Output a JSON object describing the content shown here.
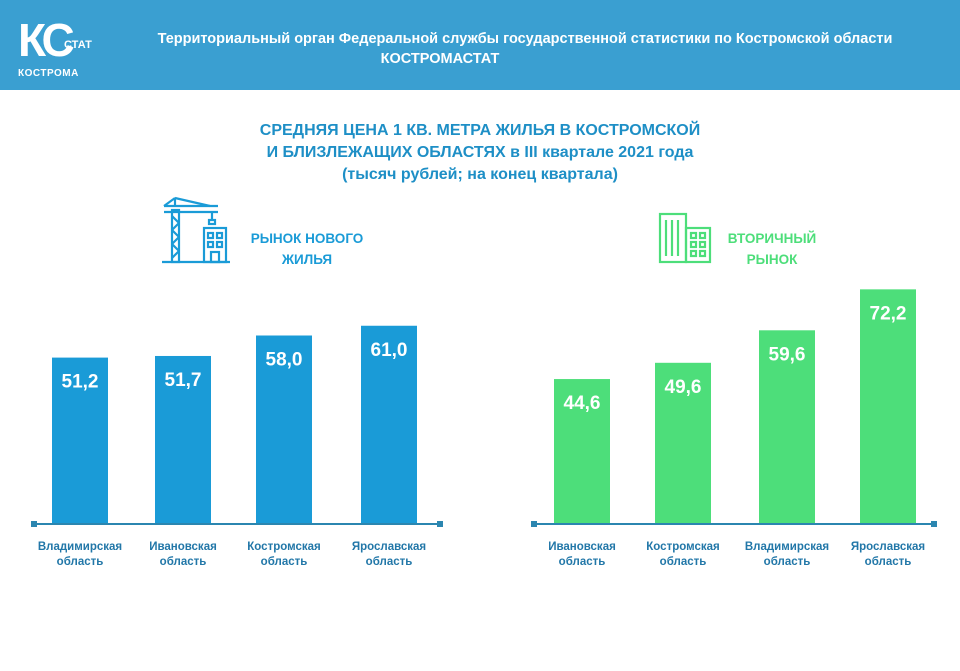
{
  "header": {
    "logo_letters": "КС",
    "logo_sub": "СТАТ",
    "logo_city": "КОСТРОМА",
    "org_line1": "Территориальный орган Федеральной службы государственной статистики по Костромской области",
    "org_line2": "КОСТРОМАСТАТ"
  },
  "colors": {
    "header_bg": "#3a9fd1",
    "new_market": "#1a9bd7",
    "secondary_market": "#4dde7a",
    "title": "#1e8fc6",
    "axis": "#2b86b0"
  },
  "icons": {
    "new_market": "construction-crane-icon",
    "secondary_market": "apartment-buildings-icon"
  },
  "chart_data": [
    {
      "type": "bar",
      "title": "СРЕДНЯЯ ЦЕНА 1 КВ. МЕТРА ЖИЛЬЯ В КОСТРОМСКОЙ И БЛИЗЛЕЖАЩИХ ОБЛАСТЯХ в III квартале 2021 года",
      "title_lines": [
        "СРЕДНЯЯ ЦЕНА 1 КВ. МЕТРА ЖИЛЬЯ В КОСТРОМСКОЙ",
        "И БЛИЗЛЕЖАЩИХ ОБЛАСТЯХ в III квартале 2021 года",
        "(тысяч рублей; на конец квартала)"
      ],
      "section_label_lines": [
        "РЫНОК НОВОГО",
        "ЖИЛЬЯ"
      ],
      "categories": [
        [
          "Владимирская",
          "область"
        ],
        [
          "Ивановская",
          "область"
        ],
        [
          "Костромская",
          "область"
        ],
        [
          "Ярославская",
          "область"
        ]
      ],
      "values": [
        51.2,
        51.7,
        58.0,
        61.0
      ],
      "value_labels": [
        "51,2",
        "51,7",
        "58,0",
        "61,0"
      ],
      "ylim": [
        0,
        80
      ],
      "grid": false
    },
    {
      "type": "bar",
      "section_label_lines": [
        "ВТОРИЧНЫЙ",
        "РЫНОК"
      ],
      "categories": [
        [
          "Ивановская",
          "область"
        ],
        [
          "Костромская",
          "область"
        ],
        [
          "Владимирская",
          "область"
        ],
        [
          "Ярославская",
          "область"
        ]
      ],
      "values": [
        44.6,
        49.6,
        59.6,
        72.2
      ],
      "value_labels": [
        "44,6",
        "49,6",
        "59,6",
        "72,2"
      ],
      "ylim": [
        0,
        80
      ],
      "grid": false
    }
  ]
}
